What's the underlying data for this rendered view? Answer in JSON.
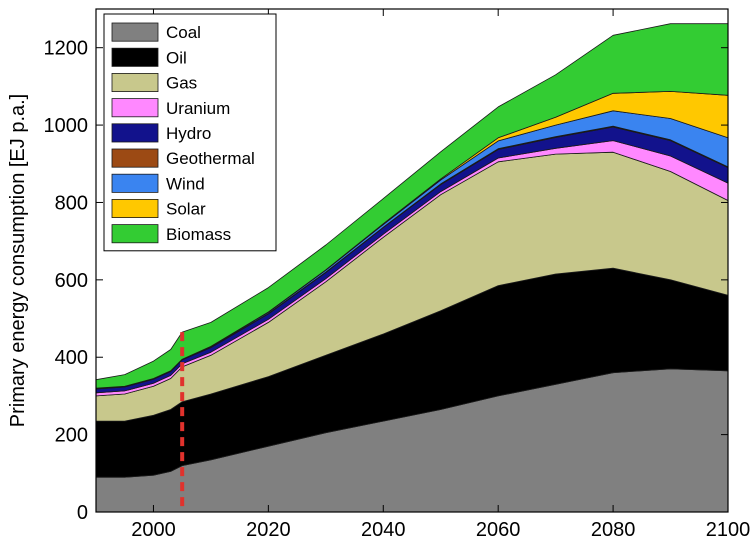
{
  "chart_data": {
    "type": "area",
    "stacked": true,
    "title": "",
    "xlabel": "",
    "ylabel": "Primary energy consumption [EJ p.a.]",
    "xlim": [
      1990,
      2100
    ],
    "ylim": [
      0,
      1300
    ],
    "xticks": [
      2000,
      2020,
      2040,
      2060,
      2080,
      2100
    ],
    "yticks": [
      0,
      200,
      400,
      600,
      800,
      1000,
      1200
    ],
    "grid": false,
    "legend_position": "top-left",
    "vertical_marker": {
      "x": 2005,
      "color": "#e0322d",
      "style": "dashed"
    },
    "x": [
      1990,
      1995,
      2000,
      2003,
      2005,
      2010,
      2020,
      2030,
      2040,
      2050,
      2060,
      2070,
      2080,
      2090,
      2100
    ],
    "series": [
      {
        "name": "Coal",
        "color": "#808080",
        "values": [
          90,
          90,
          95,
          105,
          120,
          135,
          170,
          205,
          235,
          265,
          300,
          330,
          360,
          370,
          365
        ]
      },
      {
        "name": "Oil",
        "color": "#000000",
        "values": [
          145,
          145,
          155,
          160,
          165,
          170,
          180,
          200,
          225,
          255,
          285,
          285,
          270,
          230,
          195
        ]
      },
      {
        "name": "Gas",
        "color": "#c8c88c",
        "values": [
          65,
          70,
          75,
          80,
          90,
          100,
          140,
          190,
          250,
          300,
          320,
          310,
          300,
          280,
          245
        ]
      },
      {
        "name": "Uranium",
        "color": "#ff88ff",
        "values": [
          8,
          8,
          8,
          8,
          8,
          8,
          8,
          8,
          8,
          8,
          10,
          15,
          30,
          40,
          45
        ]
      },
      {
        "name": "Hydro",
        "color": "#12128c",
        "values": [
          10,
          10,
          10,
          10,
          10,
          12,
          14,
          16,
          17,
          18,
          22,
          28,
          35,
          40,
          40
        ]
      },
      {
        "name": "Geothermal",
        "color": "#9c4a14",
        "values": [
          1,
          1,
          1,
          1,
          1,
          1,
          1,
          1,
          1,
          2,
          2,
          2,
          2,
          2,
          2
        ]
      },
      {
        "name": "Wind",
        "color": "#3a84f0",
        "values": [
          1,
          1,
          1,
          1,
          1,
          2,
          3,
          5,
          7,
          10,
          20,
          30,
          40,
          55,
          75
        ]
      },
      {
        "name": "Solar",
        "color": "#ffc800",
        "values": [
          0,
          0,
          0,
          0,
          0,
          0,
          1,
          1,
          2,
          3,
          8,
          20,
          45,
          70,
          110
        ]
      },
      {
        "name": "Biomass",
        "color": "#33cc33",
        "values": [
          22,
          30,
          45,
          55,
          70,
          62,
          63,
          64,
          65,
          70,
          80,
          110,
          150,
          175,
          185
        ]
      }
    ]
  }
}
